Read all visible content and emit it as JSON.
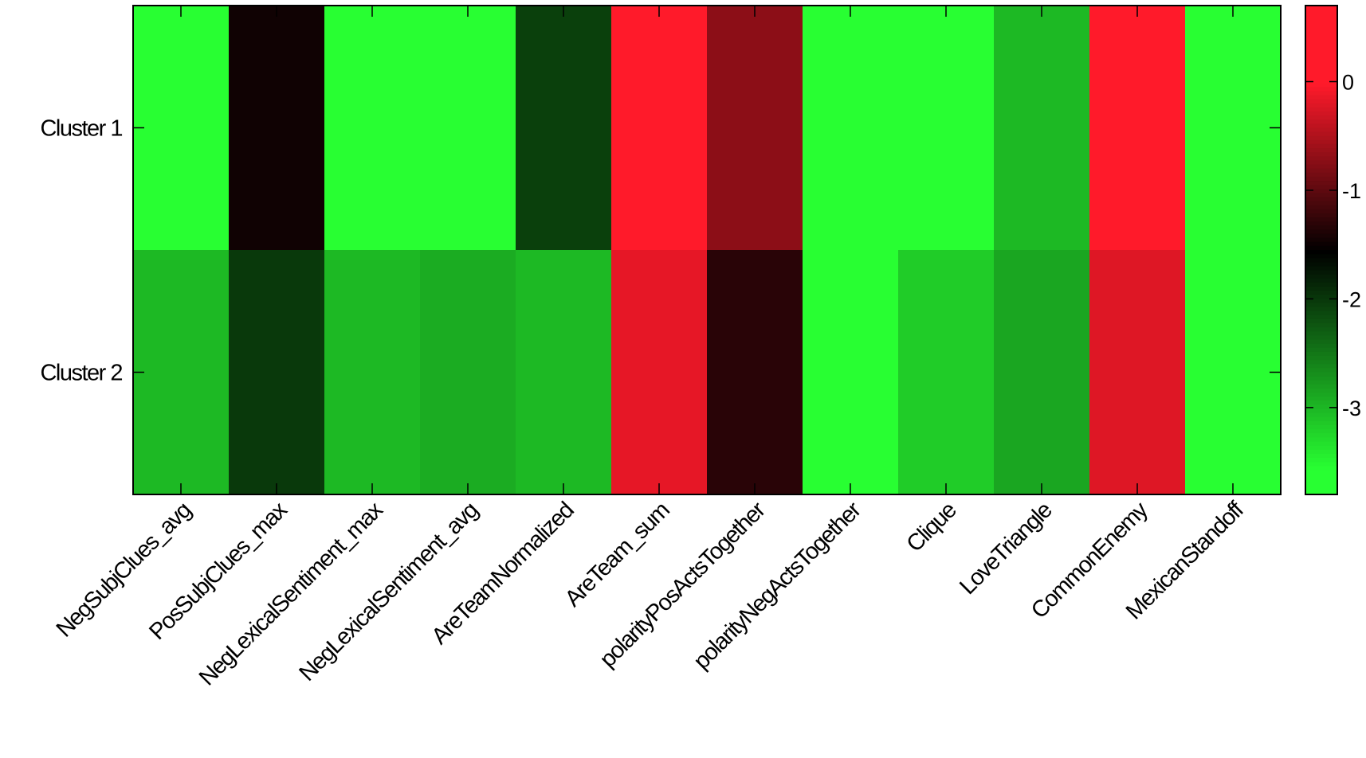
{
  "chart_data": {
    "type": "heatmap",
    "title": "",
    "xlabel": "",
    "ylabel": "",
    "rows": [
      "Cluster 1",
      "Cluster 2"
    ],
    "columns": [
      "NegSubjClues_avg",
      "PosSubjClues_max",
      "NegLexicalSentiment_max",
      "NegLexicalSentiment_avg",
      "AreTeamNormalized",
      "AreTeam_sum",
      "polarityPosActsTogether",
      "polarityNegActsTogether",
      "Clique",
      "LoveTriangle",
      "CommonEnemy",
      "MexicanStandoff"
    ],
    "values": [
      [
        -3.55,
        -1.45,
        -3.55,
        -3.6,
        -2.05,
        0.25,
        -0.7,
        -3.75,
        -3.75,
        -3.0,
        0.25,
        -3.7
      ],
      [
        -3.0,
        -2.0,
        -3.0,
        -2.9,
        -3.0,
        -0.15,
        -1.3,
        -3.65,
        -3.15,
        -2.85,
        -0.2,
        -3.55
      ]
    ],
    "colorbar": {
      "min": -3.8,
      "max": 0.7,
      "ticks": [
        0,
        -1,
        -2,
        -3
      ],
      "tick_labels": [
        "0",
        "-1",
        "-2",
        "-3"
      ],
      "colors": {
        "high": "#ff1a2a",
        "mid": "#000000",
        "low": "#28ff32"
      },
      "mid_value": -1.55
    },
    "grid": false,
    "legend": "right"
  }
}
